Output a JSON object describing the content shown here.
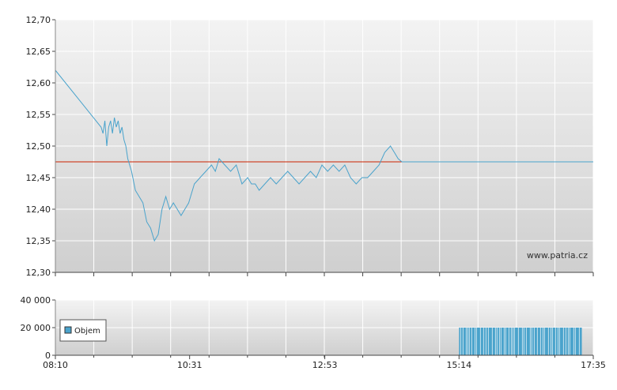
{
  "chart_data": [
    {
      "type": "line",
      "name": "price-chart",
      "watermark": "www.patria.cz",
      "ylim": [
        12.3,
        12.7
      ],
      "y_ticks": [
        "12,30",
        "12,35",
        "12,40",
        "12,45",
        "12,50",
        "12,55",
        "12,60",
        "12,65",
        "12,70"
      ],
      "x_range": [
        "08:10",
        "17:35"
      ],
      "reference_line": {
        "value": 12.475,
        "color": "#cc2200"
      },
      "series_color": "#4aa3cc",
      "grid": true,
      "series": [
        {
          "x": [
            "08:10",
            "08:58",
            "09:00",
            "09:02",
            "09:04",
            "09:06",
            "09:08",
            "09:10",
            "09:12",
            "09:14",
            "09:16",
            "09:18",
            "09:20",
            "09:22",
            "09:24",
            "09:26",
            "09:28",
            "09:30",
            "09:34",
            "09:38",
            "09:42",
            "09:46",
            "09:50",
            "09:54",
            "09:58",
            "10:02",
            "10:06",
            "10:08",
            "10:10",
            "10:14",
            "10:18",
            "10:22",
            "10:26",
            "10:30",
            "10:36",
            "10:42",
            "10:48",
            "10:54",
            "10:58",
            "11:02",
            "11:08",
            "11:14",
            "11:20",
            "11:26",
            "11:32",
            "11:36",
            "11:40",
            "11:44",
            "11:50",
            "11:56",
            "12:02",
            "12:08",
            "12:14",
            "12:20",
            "12:26",
            "12:32",
            "12:38",
            "12:44",
            "12:50",
            "12:56",
            "13:02",
            "13:08",
            "13:14",
            "13:20",
            "13:26",
            "13:32",
            "13:38",
            "13:44",
            "13:50",
            "13:56",
            "14:02",
            "14:06",
            "14:10",
            "14:14",
            "14:18",
            "14:22",
            "14:26",
            "14:30",
            "14:34",
            "14:38",
            "14:42",
            "14:46",
            "14:48",
            "14:50",
            "14:52",
            "17:35"
          ],
          "values": [
            12.62,
            12.53,
            12.52,
            12.54,
            12.5,
            12.53,
            12.54,
            12.52,
            12.545,
            12.53,
            12.54,
            12.52,
            12.53,
            12.51,
            12.5,
            12.48,
            12.47,
            12.46,
            12.43,
            12.42,
            12.41,
            12.38,
            12.37,
            12.35,
            12.36,
            12.4,
            12.42,
            12.41,
            12.4,
            12.41,
            12.4,
            12.39,
            12.4,
            12.41,
            12.44,
            12.45,
            12.46,
            12.47,
            12.46,
            12.48,
            12.47,
            12.46,
            12.47,
            12.44,
            12.45,
            12.44,
            12.44,
            12.43,
            12.44,
            12.45,
            12.44,
            12.45,
            12.46,
            12.45,
            12.44,
            12.45,
            12.46,
            12.45,
            12.47,
            12.46,
            12.47,
            12.46,
            12.47,
            12.45,
            12.44,
            12.45,
            12.45,
            12.46,
            12.47,
            12.49,
            12.5,
            12.49,
            12.48,
            12.475,
            12.475,
            12.475,
            12.475,
            12.475,
            12.475,
            12.475,
            12.475,
            12.475,
            12.475,
            12.475,
            12.475,
            12.475
          ]
        }
      ]
    },
    {
      "type": "bar",
      "name": "volume-chart",
      "ylim": [
        0,
        40000
      ],
      "y_ticks": [
        "0",
        "20 000",
        "40 000"
      ],
      "x_ticks": [
        "08:10",
        "10:31",
        "12:53",
        "15:14",
        "17:35"
      ],
      "legend": {
        "label": "Objem",
        "placement": "left"
      },
      "bar_color": "#4aa3cc",
      "grid": true,
      "volume_block": {
        "start": "15:14",
        "end": "17:23",
        "value": 20000
      }
    }
  ]
}
